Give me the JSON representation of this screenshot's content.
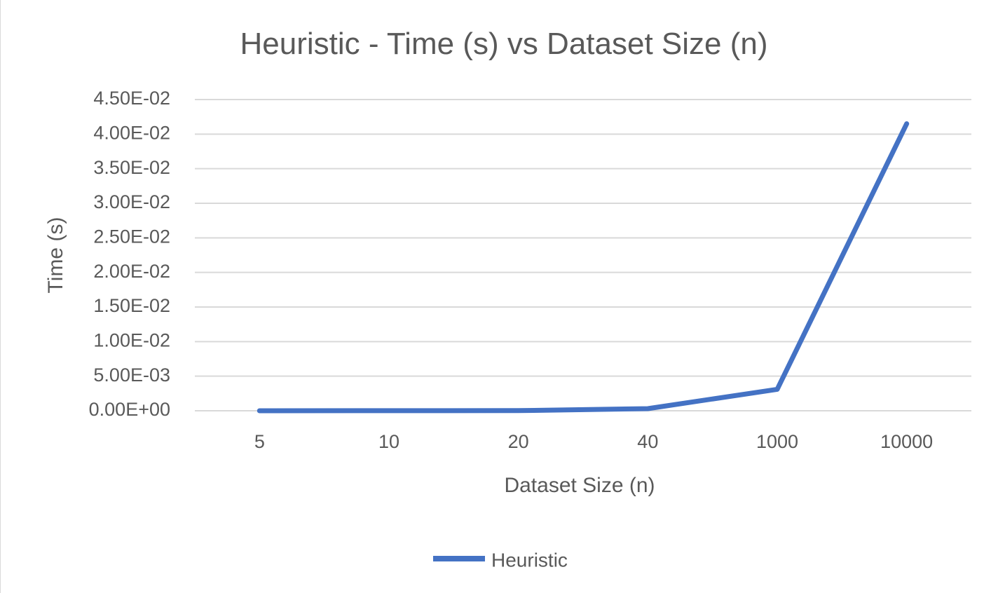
{
  "chart_data": {
    "type": "line",
    "title": "Heuristic - Time (s) vs Dataset Size (n)",
    "xlabel": "Dataset Size (n)",
    "ylabel": "Time (s)",
    "categories": [
      "5",
      "10",
      "20",
      "40",
      "1000",
      "10000"
    ],
    "y_tick_labels": [
      "0.00E+00",
      "5.00E-03",
      "1.00E-02",
      "1.50E-02",
      "2.00E-02",
      "2.50E-02",
      "3.00E-02",
      "3.50E-02",
      "4.00E-02",
      "4.50E-02"
    ],
    "ylim": [
      0,
      0.045
    ],
    "ystep": 0.005,
    "grid": true,
    "legend_position": "bottom",
    "series": [
      {
        "name": "Heuristic",
        "color": "#4472C4",
        "values": [
          5e-06,
          1e-05,
          2e-05,
          0.0003,
          0.0031,
          0.0415
        ]
      }
    ]
  }
}
